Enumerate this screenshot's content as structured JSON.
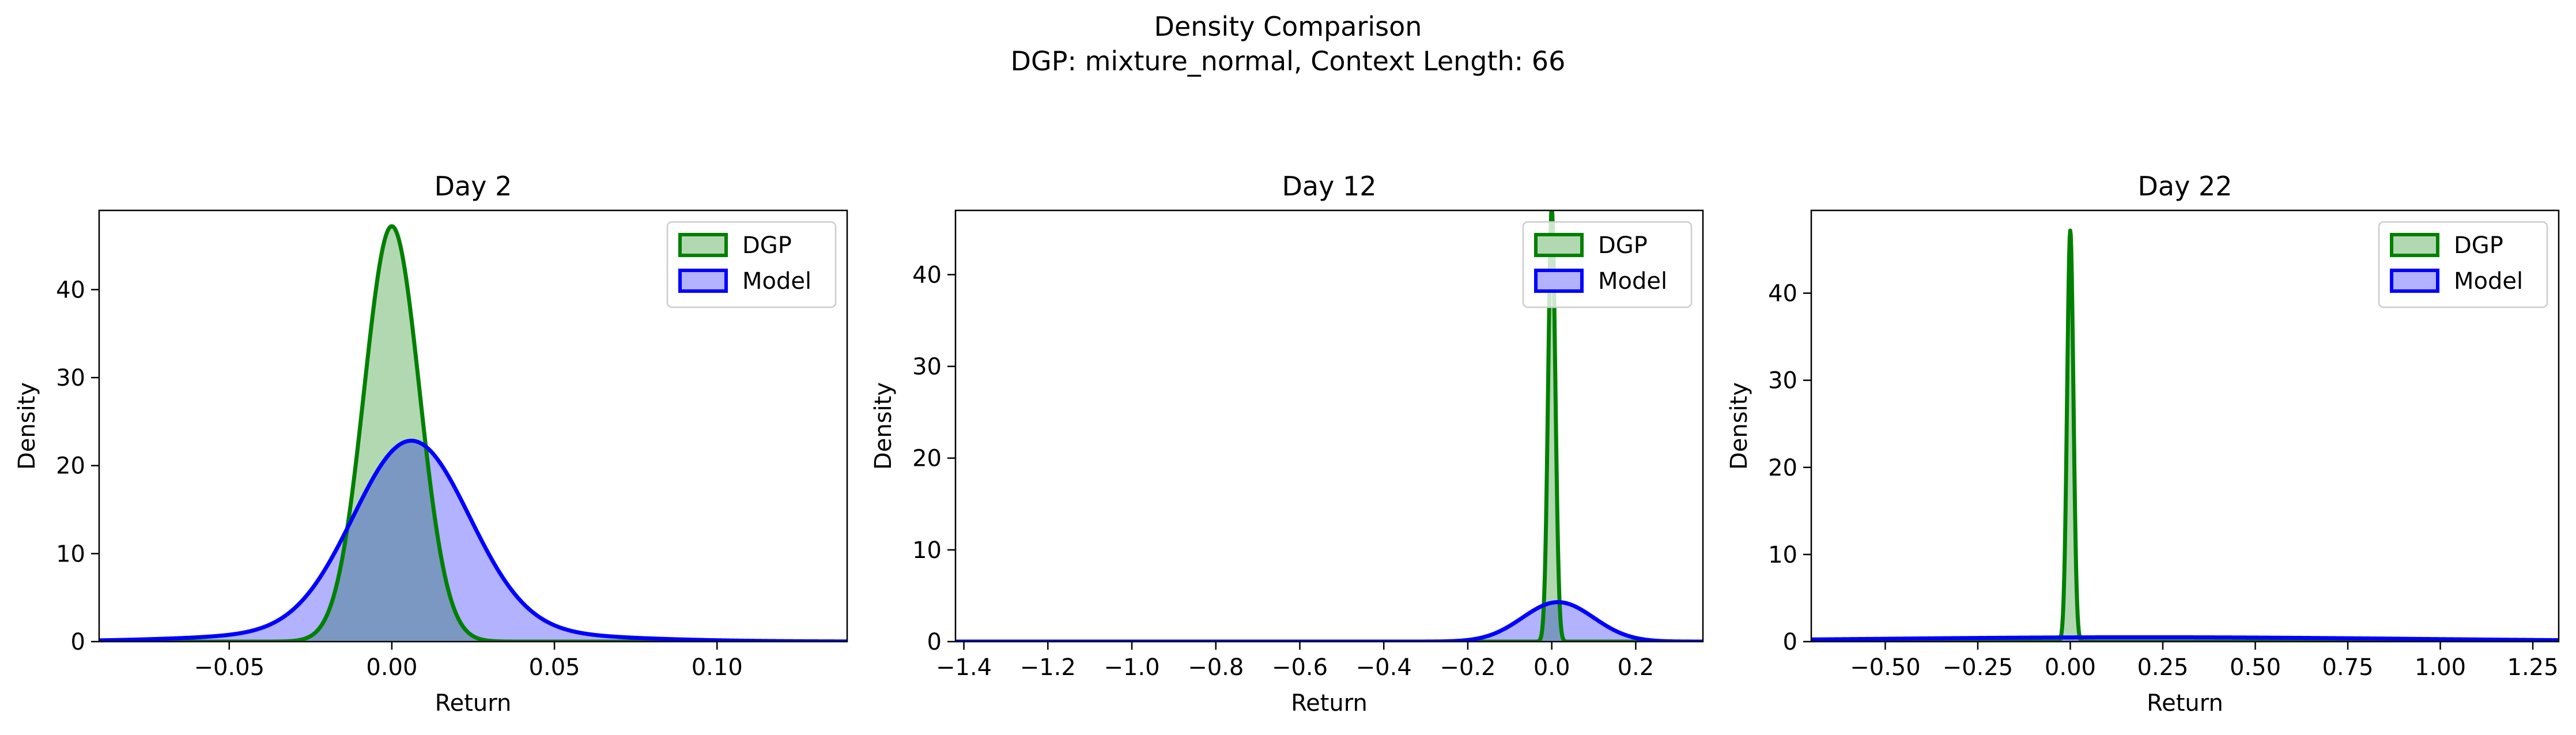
{
  "suptitle": {
    "line1": "Density Comparison",
    "line2": "DGP: mixture_normal, Context Length: 66"
  },
  "colors": {
    "dgp_line": "#008000",
    "dgp_fill": "#b2d8b2",
    "model_line": "#0000ff",
    "model_fill": "#b2b2ff",
    "overlap_fill": "#7b98c2"
  },
  "chart_data": [
    {
      "type": "area",
      "title": "Day 2",
      "xlabel": "Return",
      "ylabel": "Density",
      "xlim": [
        -0.09,
        0.14
      ],
      "ylim": [
        0,
        49
      ],
      "xticks": [
        -0.05,
        0.0,
        0.05,
        0.1
      ],
      "xtick_labels": [
        "−0.05",
        "0.00",
        "0.05",
        "0.10"
      ],
      "yticks": [
        0,
        10,
        20,
        30,
        40
      ],
      "ytick_labels": [
        "0",
        "10",
        "20",
        "30",
        "40"
      ],
      "legend_position": "upper right",
      "series": [
        {
          "name": "DGP",
          "mean": 0.0,
          "sd": 0.0085,
          "peak": 47.2
        },
        {
          "name": "Model",
          "mean": 0.006,
          "sd": 0.0178,
          "peak": 22.6,
          "tail_weight": 0.05,
          "tail_sd": 0.045
        }
      ]
    },
    {
      "type": "area",
      "title": "Day 12",
      "xlabel": "Return",
      "ylabel": "Density",
      "xlim": [
        -1.42,
        0.36
      ],
      "ylim": [
        0,
        47
      ],
      "xticks": [
        -1.4,
        -1.2,
        -1.0,
        -0.8,
        -0.6,
        -0.4,
        -0.2,
        0.0,
        0.2
      ],
      "xtick_labels": [
        "−1.4",
        "−1.2",
        "−1.0",
        "−0.8",
        "−0.6",
        "−0.4",
        "−0.2",
        "0.0",
        "0.2"
      ],
      "yticks": [
        0,
        10,
        20,
        30,
        40
      ],
      "ytick_labels": [
        "0",
        "10",
        "20",
        "30",
        "40"
      ],
      "legend_position": "upper right",
      "series": [
        {
          "name": "DGP",
          "mean": 0.0,
          "sd": 0.0085,
          "peak": 47.2
        },
        {
          "name": "Model",
          "mean": 0.015,
          "sd": 0.085,
          "peak": 4.3
        }
      ]
    },
    {
      "type": "area",
      "title": "Day 22",
      "xlabel": "Return",
      "ylabel": "Density",
      "xlim": [
        -0.7,
        1.32
      ],
      "ylim": [
        0,
        49.5
      ],
      "xticks": [
        -0.5,
        -0.25,
        0.0,
        0.25,
        0.5,
        0.75,
        1.0,
        1.25
      ],
      "xtick_labels": [
        "−0.50",
        "−0.25",
        "0.00",
        "0.25",
        "0.50",
        "0.75",
        "1.00",
        "1.25"
      ],
      "yticks": [
        0,
        10,
        20,
        30,
        40
      ],
      "ytick_labels": [
        "0",
        "10",
        "20",
        "30",
        "40"
      ],
      "legend_position": "upper right",
      "series": [
        {
          "name": "DGP",
          "mean": 0.0,
          "sd": 0.0085,
          "peak": 47.2
        },
        {
          "name": "Model",
          "mean": 0.2,
          "sd": 0.75,
          "peak": 0.5
        }
      ]
    }
  ]
}
